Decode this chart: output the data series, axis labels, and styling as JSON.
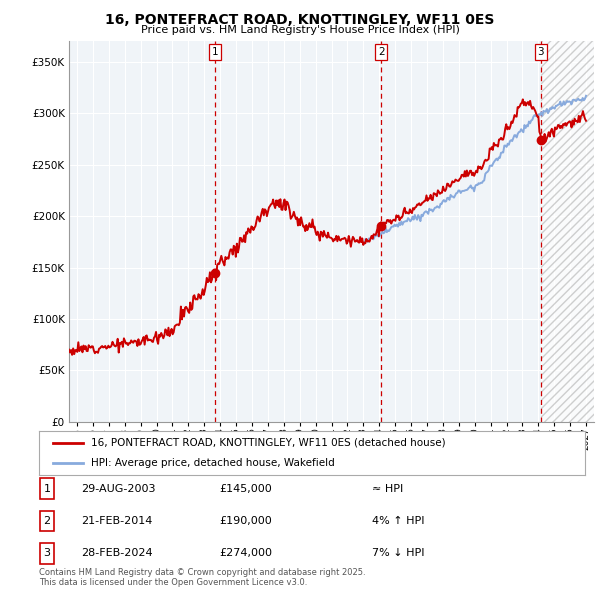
{
  "title": "16, PONTEFRACT ROAD, KNOTTINGLEY, WF11 0ES",
  "subtitle": "Price paid vs. HM Land Registry's House Price Index (HPI)",
  "legend_line1": "16, PONTEFRACT ROAD, KNOTTINGLEY, WF11 0ES (detached house)",
  "legend_line2": "HPI: Average price, detached house, Wakefield",
  "footnote": "Contains HM Land Registry data © Crown copyright and database right 2025.\nThis data is licensed under the Open Government Licence v3.0.",
  "transactions": [
    {
      "num": 1,
      "date": "29-AUG-2003",
      "price": 145000,
      "vs_hpi": "≈ HPI",
      "year": 2003.66
    },
    {
      "num": 2,
      "date": "21-FEB-2014",
      "price": 190000,
      "vs_hpi": "4% ↑ HPI",
      "year": 2014.13
    },
    {
      "num": 3,
      "date": "28-FEB-2024",
      "price": 274000,
      "vs_hpi": "7% ↓ HPI",
      "year": 2024.16
    }
  ],
  "ylim": [
    0,
    370000
  ],
  "xlim_start": 1994.5,
  "xlim_end": 2027.5,
  "yticks": [
    0,
    50000,
    100000,
    150000,
    200000,
    250000,
    300000,
    350000
  ],
  "xticks": [
    1995,
    1996,
    1997,
    1998,
    1999,
    2000,
    2001,
    2002,
    2003,
    2004,
    2005,
    2006,
    2007,
    2008,
    2009,
    2010,
    2011,
    2012,
    2013,
    2014,
    2015,
    2016,
    2017,
    2018,
    2019,
    2020,
    2021,
    2022,
    2023,
    2024,
    2025,
    2026,
    2027
  ],
  "house_color": "#cc0000",
  "hpi_color": "#88aadd",
  "vline_color": "#cc0000",
  "bg_color": "#ffffff",
  "chart_bg": "#f0f4f8",
  "grid_color": "#ffffff",
  "hatch_color": "#cccccc",
  "future_year": 2024.16,
  "hpi_start_year": 2013.0
}
